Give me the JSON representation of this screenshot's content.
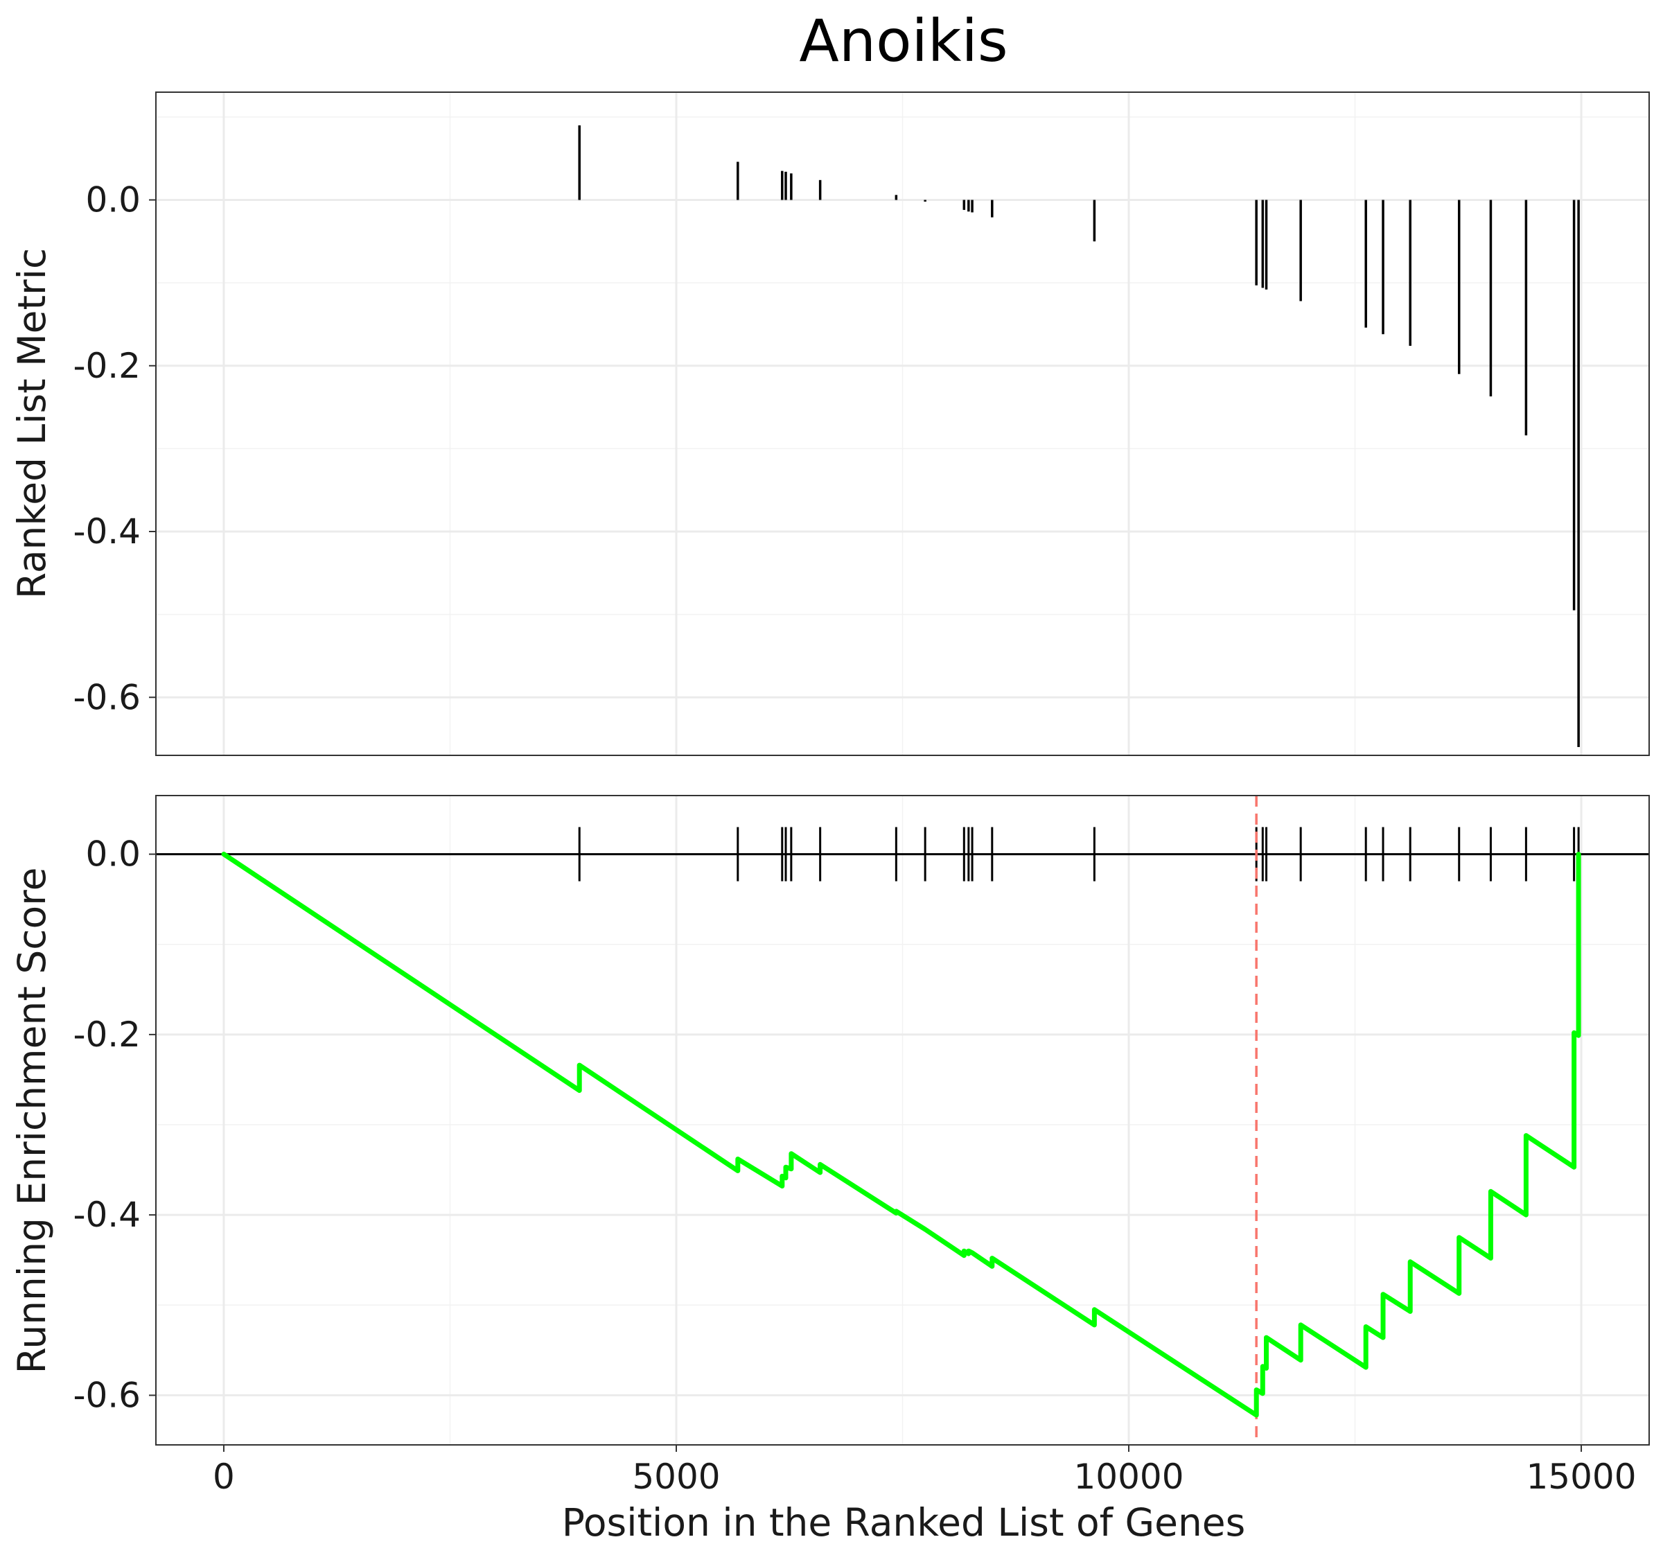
{
  "chart_data": {
    "type": "line",
    "title": "Anoikis",
    "xlabel": "Position in the Ranked List of Genes",
    "xlim": [
      -750,
      15750
    ],
    "x_ticks": [
      "0",
      "5000",
      "10000",
      "15000"
    ],
    "grid": true,
    "panels": [
      {
        "id": "ranked-metric",
        "type": "bar",
        "ylabel": "Ranked List Metric",
        "ylim": [
          -0.67,
          0.13
        ],
        "y_ticks": [
          "0.0",
          "-0.2",
          "-0.4",
          "-0.6"
        ],
        "bar_color": "#000000",
        "bars": [
          {
            "x": 3930,
            "value": 0.09
          },
          {
            "x": 5680,
            "value": 0.046
          },
          {
            "x": 6170,
            "value": 0.035
          },
          {
            "x": 6210,
            "value": 0.034
          },
          {
            "x": 6270,
            "value": 0.032
          },
          {
            "x": 6590,
            "value": 0.024
          },
          {
            "x": 7430,
            "value": 0.006
          },
          {
            "x": 7750,
            "value": -0.002
          },
          {
            "x": 8180,
            "value": -0.012
          },
          {
            "x": 8230,
            "value": -0.014
          },
          {
            "x": 8270,
            "value": -0.015
          },
          {
            "x": 8490,
            "value": -0.021
          },
          {
            "x": 9620,
            "value": -0.05
          },
          {
            "x": 11410,
            "value": -0.103
          },
          {
            "x": 11480,
            "value": -0.106
          },
          {
            "x": 11520,
            "value": -0.108
          },
          {
            "x": 11900,
            "value": -0.122
          },
          {
            "x": 12620,
            "value": -0.154
          },
          {
            "x": 12810,
            "value": -0.162
          },
          {
            "x": 13110,
            "value": -0.176
          },
          {
            "x": 13650,
            "value": -0.21
          },
          {
            "x": 14000,
            "value": -0.237
          },
          {
            "x": 14390,
            "value": -0.284
          },
          {
            "x": 14920,
            "value": -0.495
          },
          {
            "x": 14970,
            "value": -0.66
          }
        ]
      },
      {
        "id": "running-es",
        "type": "line",
        "ylabel": "Running Enrichment Score",
        "ylim": [
          -0.655,
          0.065
        ],
        "y_ticks": [
          "0.0",
          "-0.2",
          "-0.4",
          "-0.6"
        ],
        "line_color": "#00ff00",
        "zero_line": true,
        "max_deviation_x": 11410,
        "max_deviation_color": "#f8766d",
        "hit_positions": [
          3930,
          5680,
          6170,
          6210,
          6270,
          6590,
          7430,
          7750,
          8180,
          8230,
          8270,
          8490,
          9620,
          11410,
          11480,
          11520,
          11900,
          12620,
          12810,
          13110,
          13650,
          14000,
          14390,
          14920,
          14970
        ],
        "points": [
          [
            0,
            0.0
          ],
          [
            3930,
            -0.262
          ],
          [
            3930,
            -0.234
          ],
          [
            5680,
            -0.351
          ],
          [
            5680,
            -0.338
          ],
          [
            6170,
            -0.368
          ],
          [
            6170,
            -0.357
          ],
          [
            6210,
            -0.359
          ],
          [
            6210,
            -0.347
          ],
          [
            6270,
            -0.349
          ],
          [
            6270,
            -0.332
          ],
          [
            6590,
            -0.353
          ],
          [
            6590,
            -0.344
          ],
          [
            7430,
            -0.398
          ],
          [
            7430,
            -0.396
          ],
          [
            7750,
            -0.416
          ],
          [
            8180,
            -0.445
          ],
          [
            8180,
            -0.44
          ],
          [
            8230,
            -0.443
          ],
          [
            8230,
            -0.44
          ],
          [
            8270,
            -0.442
          ],
          [
            8490,
            -0.457
          ],
          [
            8490,
            -0.448
          ],
          [
            9620,
            -0.522
          ],
          [
            9620,
            -0.505
          ],
          [
            11410,
            -0.622
          ],
          [
            11410,
            -0.594
          ],
          [
            11480,
            -0.598
          ],
          [
            11480,
            -0.568
          ],
          [
            11520,
            -0.57
          ],
          [
            11520,
            -0.536
          ],
          [
            11900,
            -0.561
          ],
          [
            11900,
            -0.522
          ],
          [
            12620,
            -0.569
          ],
          [
            12620,
            -0.524
          ],
          [
            12810,
            -0.536
          ],
          [
            12810,
            -0.488
          ],
          [
            13110,
            -0.507
          ],
          [
            13110,
            -0.452
          ],
          [
            13650,
            -0.487
          ],
          [
            13650,
            -0.425
          ],
          [
            14000,
            -0.448
          ],
          [
            14000,
            -0.374
          ],
          [
            14390,
            -0.4
          ],
          [
            14390,
            -0.312
          ],
          [
            14920,
            -0.347
          ],
          [
            14920,
            -0.198
          ],
          [
            14970,
            -0.201
          ],
          [
            14970,
            0.0
          ]
        ]
      }
    ]
  }
}
